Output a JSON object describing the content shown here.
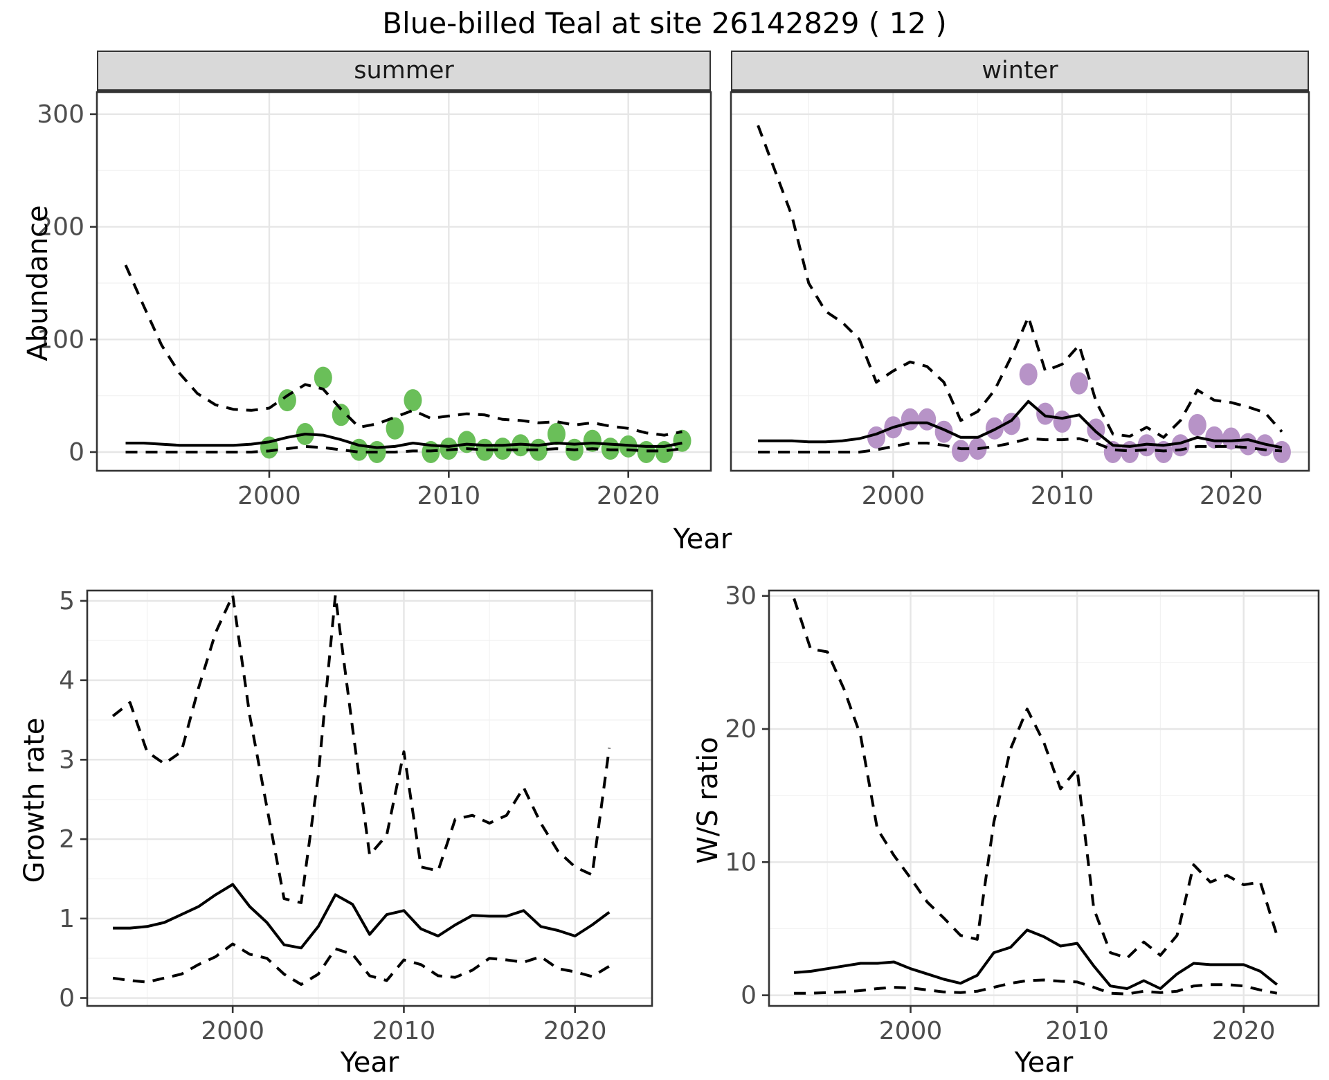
{
  "title": "Blue-billed Teal at site 26142829 ( 12 )",
  "labels": {
    "year": "Year",
    "abundance": "Abundance",
    "growth_rate": "Growth rate",
    "ws_ratio": "W/S ratio"
  },
  "facets": [
    {
      "label": "summer"
    },
    {
      "label": "winter"
    }
  ],
  "colors": {
    "summer_point": "#6abf59",
    "winter_point": "#b793c7",
    "line": "#000000",
    "strip_bg": "#d9d9d9",
    "panel_border": "#333333",
    "grid_major": "#e6e6e6",
    "grid_minor": "#f2f2f2",
    "tick_text": "#4d4d4d"
  },
  "chart_data": [
    {
      "id": "abundance_summer",
      "type": "line",
      "facet": "summer",
      "title": "summer",
      "xlabel": "Year",
      "ylabel": "Abundance",
      "xlim": [
        1990.4,
        2024.6
      ],
      "ylim": [
        -16.6,
        319.6
      ],
      "xticks": [
        2000,
        2010,
        2020
      ],
      "xminor": [
        1995,
        2005,
        2015
      ],
      "yticks": [
        0,
        100,
        200,
        300
      ],
      "yminor": [
        50,
        150,
        250
      ],
      "grid": true,
      "legend": "none",
      "x": [
        1992,
        1993,
        1994,
        1995,
        1996,
        1997,
        1998,
        1999,
        2000,
        2001,
        2002,
        2003,
        2004,
        2005,
        2006,
        2007,
        2008,
        2009,
        2010,
        2011,
        2012,
        2013,
        2014,
        2015,
        2016,
        2017,
        2018,
        2019,
        2020,
        2021,
        2022,
        2023
      ],
      "series": [
        {
          "name": "mean abundance",
          "style": "solid",
          "values": [
            8,
            8,
            7,
            6,
            6,
            6,
            6,
            7,
            9,
            13,
            16,
            15,
            11,
            6,
            4,
            5,
            8,
            6,
            5,
            7,
            6,
            6,
            7,
            6,
            8,
            7,
            8,
            7,
            6,
            5,
            5,
            8
          ]
        },
        {
          "name": "upper 95% CI",
          "style": "dashed",
          "values": [
            166,
            130,
            95,
            70,
            52,
            42,
            38,
            37,
            39,
            50,
            60,
            56,
            38,
            22,
            25,
            31,
            37,
            30,
            32,
            34,
            33,
            29,
            28,
            26,
            27,
            24,
            26,
            23,
            21,
            17,
            15,
            18
          ]
        },
        {
          "name": "lower 95% CI",
          "style": "dashed",
          "values": [
            0,
            0,
            0,
            0,
            0,
            0,
            0,
            0,
            1,
            3,
            5,
            4,
            2,
            0,
            0,
            0,
            1,
            1,
            2,
            3,
            2,
            2,
            2,
            2,
            3,
            2,
            3,
            2,
            2,
            1,
            1,
            3
          ]
        }
      ],
      "points": {
        "name": "observed summer counts",
        "color": "#6abf59",
        "x": [
          2000,
          2001,
          2002,
          2003,
          2004,
          2005,
          2006,
          2007,
          2008,
          2009,
          2010,
          2011,
          2012,
          2013,
          2014,
          2015,
          2016,
          2017,
          2018,
          2019,
          2020,
          2021,
          2022,
          2023
        ],
        "y": [
          4,
          46,
          16,
          66,
          33,
          2,
          0,
          21,
          46,
          0,
          3,
          9,
          2,
          3,
          6,
          2,
          16,
          2,
          10,
          3,
          5,
          0,
          0,
          10
        ]
      }
    },
    {
      "id": "abundance_winter",
      "type": "line",
      "facet": "winter",
      "title": "winter",
      "xlabel": "Year",
      "ylabel": "Abundance",
      "xlim": [
        1990.4,
        2024.6
      ],
      "ylim": [
        -16.6,
        319.6
      ],
      "xticks": [
        2000,
        2010,
        2020
      ],
      "xminor": [
        1995,
        2005,
        2015
      ],
      "yticks": [
        0,
        100,
        200,
        300
      ],
      "yminor": [
        50,
        150,
        250
      ],
      "grid": true,
      "legend": "none",
      "x": [
        1992,
        1993,
        1994,
        1995,
        1996,
        1997,
        1998,
        1999,
        2000,
        2001,
        2002,
        2003,
        2004,
        2005,
        2006,
        2007,
        2008,
        2009,
        2010,
        2011,
        2012,
        2013,
        2014,
        2015,
        2016,
        2017,
        2018,
        2019,
        2020,
        2021,
        2022,
        2023
      ],
      "series": [
        {
          "name": "mean abundance",
          "style": "solid",
          "values": [
            10,
            10,
            10,
            9,
            9,
            10,
            12,
            16,
            22,
            26,
            26,
            20,
            13,
            13,
            20,
            28,
            45,
            32,
            30,
            33,
            18,
            6,
            5,
            7,
            6,
            8,
            13,
            10,
            10,
            11,
            7,
            4
          ]
        },
        {
          "name": "upper 95% CI",
          "style": "dashed",
          "values": [
            290,
            250,
            210,
            150,
            125,
            115,
            100,
            62,
            72,
            80,
            76,
            62,
            28,
            36,
            55,
            85,
            120,
            72,
            78,
            95,
            45,
            16,
            14,
            22,
            13,
            28,
            55,
            46,
            44,
            40,
            35,
            18
          ]
        },
        {
          "name": "lower 95% CI",
          "style": "dashed",
          "values": [
            0,
            0,
            0,
            0,
            0,
            0,
            0,
            2,
            5,
            8,
            8,
            6,
            3,
            3,
            5,
            8,
            12,
            11,
            11,
            12,
            8,
            2,
            1,
            2,
            1,
            2,
            5,
            5,
            5,
            4,
            2,
            1
          ]
        }
      ],
      "points": {
        "name": "observed winter counts",
        "color": "#b793c7",
        "x": [
          1999,
          2000,
          2001,
          2002,
          2003,
          2004,
          2005,
          2006,
          2007,
          2008,
          2009,
          2010,
          2011,
          2012,
          2013,
          2014,
          2015,
          2016,
          2017,
          2018,
          2019,
          2020,
          2021,
          2022,
          2023
        ],
        "y": [
          13,
          22,
          29,
          29,
          18,
          1,
          3,
          21,
          25,
          69,
          34,
          27,
          61,
          20,
          0,
          0,
          6,
          0,
          6,
          24,
          13,
          12,
          7,
          6,
          0
        ]
      }
    },
    {
      "id": "growth_rate",
      "type": "line",
      "title": "",
      "xlabel": "Year",
      "ylabel": "Growth rate",
      "xlim": [
        1991.5,
        2024.5
      ],
      "ylim": [
        -0.1,
        5.13
      ],
      "xticks": [
        2000,
        2010,
        2020
      ],
      "xminor": [
        1995,
        2005,
        2015
      ],
      "yticks": [
        0,
        1,
        2,
        3,
        4,
        5
      ],
      "yminor": [
        0.5,
        1.5,
        2.5,
        3.5,
        4.5
      ],
      "grid": true,
      "legend": "none",
      "x": [
        1993,
        1994,
        1995,
        1996,
        1997,
        1998,
        1999,
        2000,
        2001,
        2002,
        2003,
        2004,
        2005,
        2006,
        2007,
        2008,
        2009,
        2010,
        2011,
        2012,
        2013,
        2014,
        2015,
        2016,
        2017,
        2018,
        2019,
        2020,
        2021,
        2022
      ],
      "series": [
        {
          "name": "mean growth rate",
          "style": "solid",
          "values": [
            0.88,
            0.88,
            0.9,
            0.95,
            1.05,
            1.15,
            1.3,
            1.43,
            1.15,
            0.95,
            0.67,
            0.63,
            0.9,
            1.3,
            1.18,
            0.8,
            1.05,
            1.1,
            0.87,
            0.78,
            0.92,
            1.04,
            1.03,
            1.03,
            1.1,
            0.9,
            0.85,
            0.78,
            0.92,
            1.08
          ]
        },
        {
          "name": "upper 95% CI",
          "style": "dashed",
          "values": [
            3.55,
            3.72,
            3.1,
            2.95,
            3.1,
            3.9,
            4.6,
            5.07,
            3.55,
            2.4,
            1.25,
            1.2,
            2.8,
            5.07,
            3.4,
            1.8,
            2.05,
            3.1,
            1.65,
            1.6,
            2.25,
            2.3,
            2.2,
            2.3,
            2.65,
            2.2,
            1.85,
            1.65,
            1.55,
            3.15
          ]
        },
        {
          "name": "lower 95% CI",
          "style": "dashed",
          "values": [
            0.25,
            0.22,
            0.2,
            0.25,
            0.3,
            0.42,
            0.52,
            0.68,
            0.55,
            0.5,
            0.3,
            0.17,
            0.3,
            0.62,
            0.55,
            0.28,
            0.22,
            0.48,
            0.42,
            0.28,
            0.26,
            0.35,
            0.5,
            0.48,
            0.45,
            0.52,
            0.37,
            0.33,
            0.27,
            0.4
          ]
        }
      ]
    },
    {
      "id": "ws_ratio",
      "type": "line",
      "title": "",
      "xlabel": "Year",
      "ylabel": "W/S ratio",
      "xlim": [
        1991.5,
        2024.5
      ],
      "ylim": [
        -0.8,
        30.4
      ],
      "xticks": [
        2000,
        2010,
        2020
      ],
      "xminor": [
        1995,
        2005,
        2015
      ],
      "yticks": [
        0,
        10,
        20,
        30
      ],
      "yminor": [
        5,
        15,
        25
      ],
      "grid": true,
      "legend": "none",
      "x": [
        1993,
        1994,
        1995,
        1996,
        1997,
        1998,
        1999,
        2000,
        2001,
        2002,
        2003,
        2004,
        2005,
        2006,
        2007,
        2008,
        2009,
        2010,
        2011,
        2012,
        2013,
        2014,
        2015,
        2016,
        2017,
        2018,
        2019,
        2020,
        2021,
        2022
      ],
      "series": [
        {
          "name": "mean W/S ratio",
          "style": "solid",
          "values": [
            1.7,
            1.8,
            2.0,
            2.2,
            2.4,
            2.4,
            2.5,
            2.0,
            1.6,
            1.2,
            0.9,
            1.5,
            3.2,
            3.6,
            4.9,
            4.4,
            3.7,
            3.9,
            2.2,
            0.7,
            0.5,
            1.1,
            0.5,
            1.6,
            2.4,
            2.3,
            2.3,
            2.3,
            1.8,
            0.8
          ]
        },
        {
          "name": "upper 95% CI",
          "style": "dashed",
          "values": [
            29.8,
            26.0,
            25.8,
            23.0,
            19.5,
            12.5,
            10.5,
            8.8,
            7.0,
            5.8,
            4.5,
            4.2,
            13.0,
            18.5,
            21.5,
            19.0,
            15.5,
            17.0,
            6.5,
            3.2,
            2.8,
            4.0,
            3.0,
            4.5,
            9.8,
            8.5,
            9.0,
            8.3,
            8.5,
            4.5
          ]
        },
        {
          "name": "lower 95% CI",
          "style": "dashed",
          "values": [
            0.15,
            0.15,
            0.2,
            0.25,
            0.35,
            0.5,
            0.6,
            0.55,
            0.4,
            0.25,
            0.2,
            0.3,
            0.6,
            0.9,
            1.1,
            1.15,
            1.05,
            1.0,
            0.6,
            0.15,
            0.1,
            0.3,
            0.2,
            0.3,
            0.7,
            0.8,
            0.8,
            0.7,
            0.4,
            0.15
          ]
        }
      ]
    }
  ]
}
